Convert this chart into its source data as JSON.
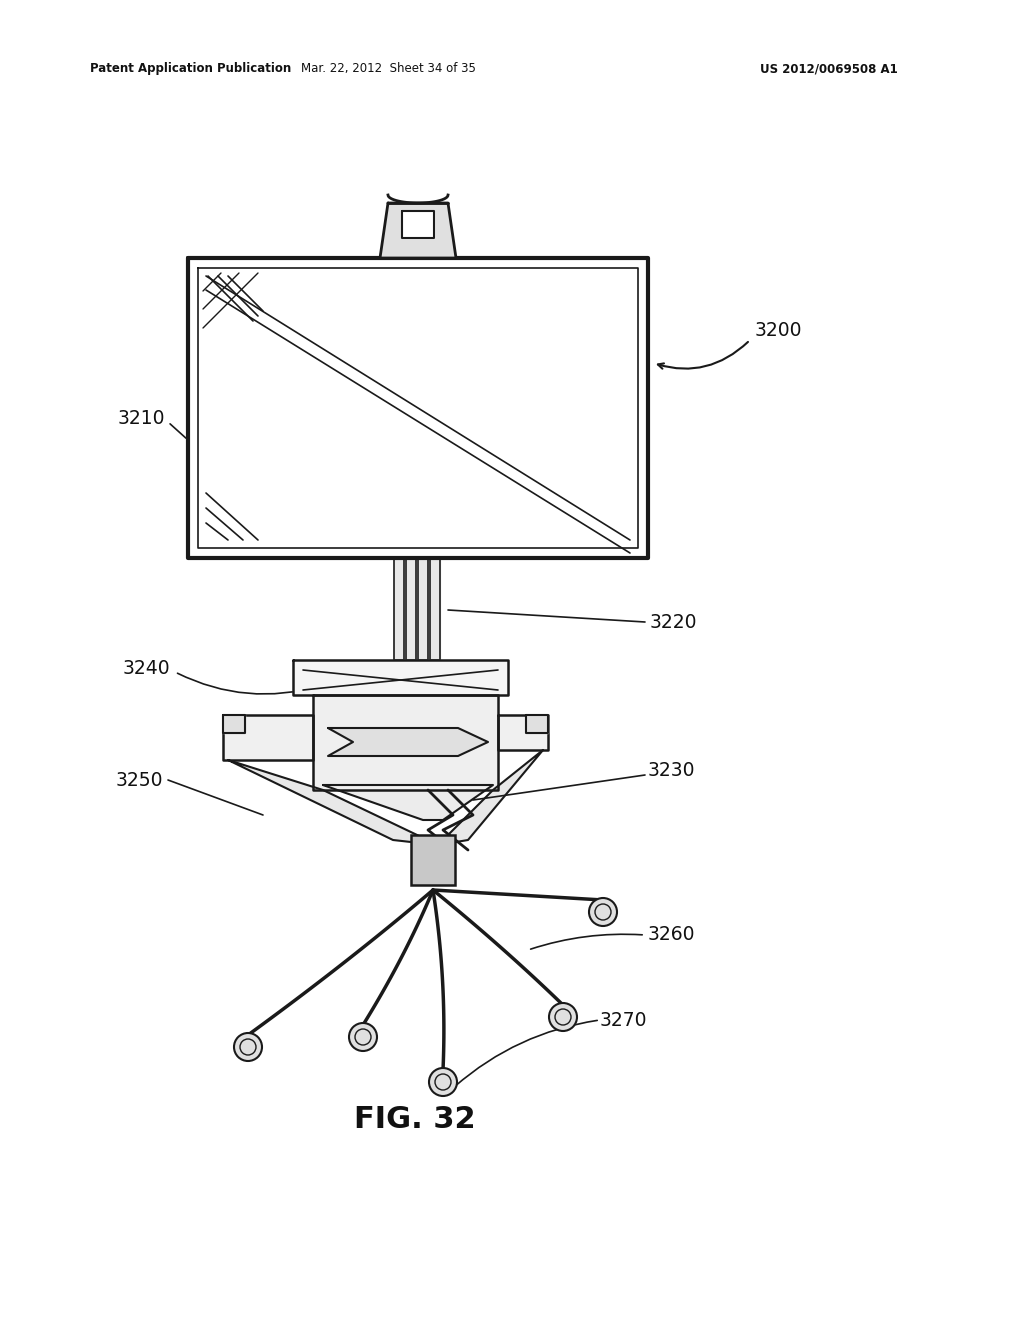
{
  "bg_color": "#ffffff",
  "line_color": "#1a1a1a",
  "header_left": "Patent Application Publication",
  "header_mid": "Mar. 22, 2012  Sheet 34 of 35",
  "header_right": "US 2012/0069508 A1",
  "fig_label": "FIG. 32",
  "lw": 1.4,
  "lw_thick": 2.2
}
